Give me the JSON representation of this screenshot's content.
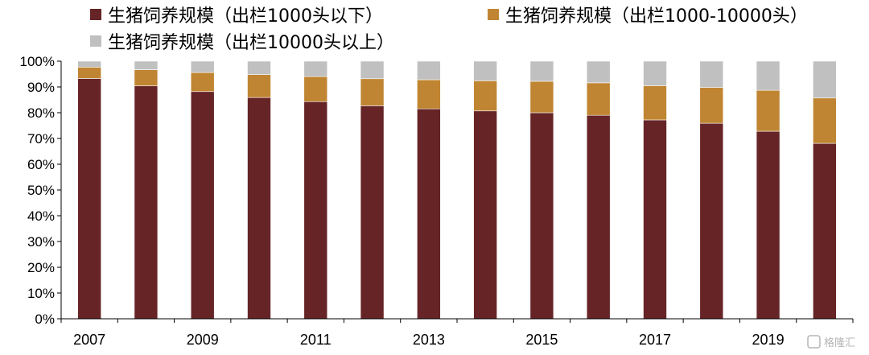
{
  "chart_data": {
    "type": "bar",
    "stacked": true,
    "title": "",
    "xlabel": "",
    "ylabel": "",
    "ylim": [
      0,
      100
    ],
    "yticks": [
      "0%",
      "10%",
      "20%",
      "30%",
      "40%",
      "50%",
      "60%",
      "70%",
      "80%",
      "90%",
      "100%"
    ],
    "categories": [
      "2007",
      "2008",
      "2009",
      "2010",
      "2011",
      "2012",
      "2013",
      "2014",
      "2015",
      "2016",
      "2017",
      "2018",
      "2019",
      "2020"
    ],
    "x_tick_labels": [
      "2007",
      "",
      "2009",
      "",
      "2011",
      "",
      "2013",
      "",
      "2015",
      "",
      "2017",
      "",
      "2019",
      ""
    ],
    "series": [
      {
        "name": "生猪饲养规模（出栏1000头以下）",
        "color": "#662426",
        "values": [
          93.3,
          90.4,
          88.2,
          85.9,
          84.3,
          82.7,
          81.5,
          80.7,
          80.0,
          79.0,
          77.2,
          75.9,
          72.8,
          68.1
        ]
      },
      {
        "name": "生猪饲养规模（出栏1000-10000头）",
        "color": "#C08532",
        "values": [
          4.4,
          6.3,
          7.4,
          8.9,
          9.7,
          10.5,
          11.3,
          11.7,
          12.2,
          12.6,
          13.3,
          13.9,
          15.9,
          17.6
        ]
      },
      {
        "name": "生猪饲养规模（出栏10000头以上）",
        "color": "#C0C0C0",
        "values": [
          2.3,
          3.3,
          4.4,
          5.2,
          6.0,
          6.8,
          7.2,
          7.6,
          7.8,
          8.4,
          9.5,
          10.2,
          11.3,
          14.3
        ]
      }
    ],
    "legend_position": "top",
    "grid": false
  },
  "watermark": {
    "text": "格隆汇"
  }
}
